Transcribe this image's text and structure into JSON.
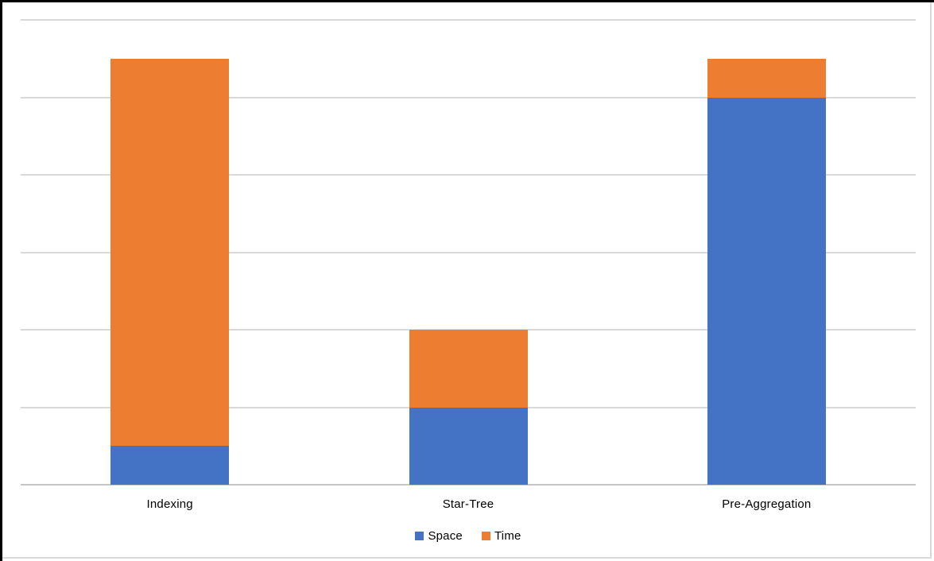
{
  "frame": {
    "window_border_color": "#000000",
    "chart_border_color": "#D9D9D9",
    "background_color": "#FFFFFF"
  },
  "chart_data": {
    "type": "bar",
    "stacked": true,
    "title": "",
    "xlabel": "",
    "ylabel": "",
    "categories": [
      "Indexing",
      "Star-Tree",
      "Pre-Aggregation"
    ],
    "series": [
      {
        "name": "Space",
        "color": "#4472C4",
        "values": [
          0.5,
          1,
          5
        ]
      },
      {
        "name": "Time",
        "color": "#ED7D31",
        "values": [
          5,
          1,
          0.5
        ]
      }
    ],
    "totals": [
      5.5,
      2,
      5.5
    ],
    "value_units": "gridline-intervals (no y-axis tick labels shown)",
    "ylim": [
      0,
      6
    ],
    "grid": {
      "visible": true,
      "interval": 1,
      "color": "#D9D9D9",
      "axis_line_color": "#C6C6C6"
    },
    "legend": {
      "position": "bottom-center",
      "entries": [
        {
          "label": "Space",
          "color": "#4472C4"
        },
        {
          "label": "Time",
          "color": "#ED7D31"
        }
      ]
    }
  }
}
